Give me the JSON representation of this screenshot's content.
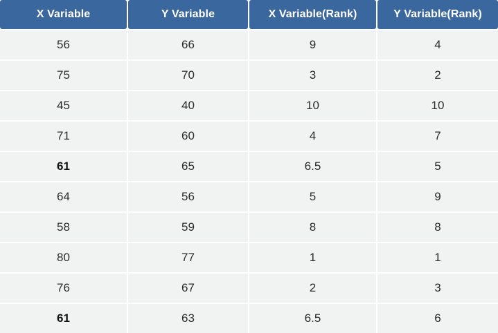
{
  "chart_data": {
    "type": "table",
    "columns": [
      "X Variable",
      "Y Variable",
      "X Variable(Rank)",
      "Y Variable(Rank)"
    ],
    "rows": [
      [
        "56",
        "66",
        "9",
        "4"
      ],
      [
        "75",
        "70",
        "3",
        "2"
      ],
      [
        "45",
        "40",
        "10",
        "10"
      ],
      [
        "71",
        "60",
        "4",
        "7"
      ],
      [
        "61",
        "65",
        "6.5",
        "5"
      ],
      [
        "64",
        "56",
        "5",
        "9"
      ],
      [
        "58",
        "59",
        "8",
        "8"
      ],
      [
        "80",
        "77",
        "1",
        "1"
      ],
      [
        "76",
        "67",
        "2",
        "3"
      ],
      [
        "61",
        "63",
        "6.5",
        "6"
      ]
    ],
    "bold_rows": [
      4,
      9
    ],
    "bold_column": 0
  },
  "colors": {
    "header_bg": "#3b679f",
    "header_text": "#ffffff",
    "cell_bg": "#f1f2f2",
    "cell_text": "#2b2b2b"
  }
}
